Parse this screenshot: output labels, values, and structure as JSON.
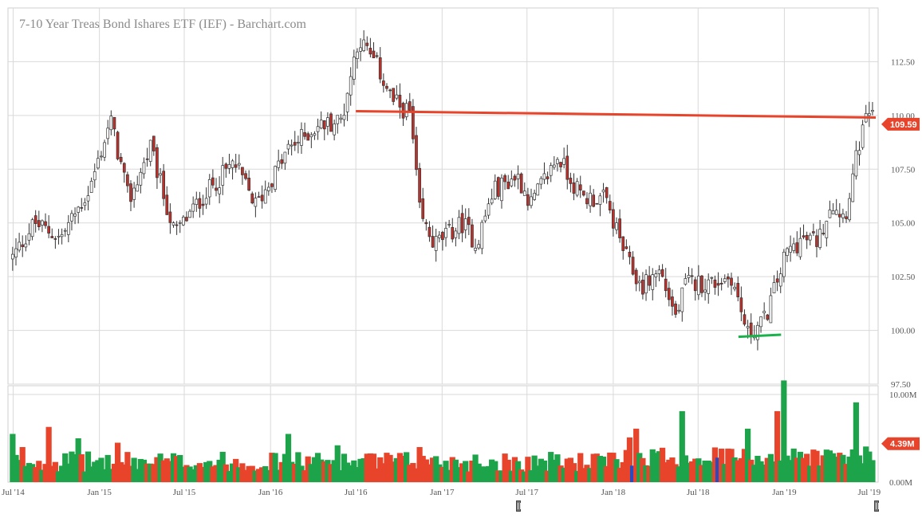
{
  "chart_data": {
    "type": "candlestick",
    "title": "7-10 Year Treas Bond Ishares ETF (IEF) - Barchart.com",
    "price_axis": {
      "ylim": [
        97.5,
        115.0
      ],
      "ticks": [
        97.5,
        100.0,
        102.5,
        105.0,
        107.5,
        110.0,
        112.5
      ],
      "tick_labels": [
        "97.50",
        "100.00",
        "102.50",
        "105.00",
        "107.50",
        "110.00",
        "112.50"
      ],
      "grid": true,
      "position": "right"
    },
    "volume_axis": {
      "ylim": [
        0,
        11
      ],
      "ticks": [
        0,
        10
      ],
      "tick_labels": [
        "0.00M",
        "10.00M"
      ]
    },
    "x_axis": {
      "tick_labels": [
        "Jul '14",
        "Jan '15",
        "Jul '15",
        "Jan '16",
        "Jul '16",
        "Jan '17",
        "Jul '17",
        "Jan '18",
        "Jul '18",
        "Jan '19",
        "Jul '19"
      ],
      "grid": true
    },
    "last_price": {
      "value": 109.59,
      "label": "109.59"
    },
    "last_volume": {
      "value": 4.39,
      "label": "4.39M"
    },
    "anchors": [
      [
        "2014-06-30",
        103.4
      ],
      [
        "2014-08-15",
        105.0
      ],
      [
        "2014-10-10",
        104.3
      ],
      [
        "2014-12-10",
        106.5
      ],
      [
        "2015-01-25",
        109.8
      ],
      [
        "2015-03-05",
        106.0
      ],
      [
        "2015-04-20",
        108.5
      ],
      [
        "2015-06-10",
        104.5
      ],
      [
        "2015-08-20",
        106.5
      ],
      [
        "2015-10-15",
        107.8
      ],
      [
        "2015-12-01",
        105.8
      ],
      [
        "2016-02-10",
        108.5
      ],
      [
        "2016-04-10",
        109.5
      ],
      [
        "2016-06-01",
        109.8
      ],
      [
        "2016-07-06",
        113.6
      ],
      [
        "2016-08-15",
        112.3
      ],
      [
        "2016-09-20",
        110.6
      ],
      [
        "2016-10-25",
        110.1
      ],
      [
        "2016-11-15",
        105.3
      ],
      [
        "2016-12-15",
        104.0
      ],
      [
        "2017-02-15",
        105.0
      ],
      [
        "2017-03-15",
        104.0
      ],
      [
        "2017-04-20",
        106.5
      ],
      [
        "2017-06-10",
        107.2
      ],
      [
        "2017-07-10",
        105.9
      ],
      [
        "2017-09-05",
        108.1
      ],
      [
        "2017-10-25",
        106.2
      ],
      [
        "2017-12-15",
        106.1
      ],
      [
        "2018-02-01",
        103.2
      ],
      [
        "2018-03-01",
        102.0
      ],
      [
        "2018-04-10",
        102.8
      ],
      [
        "2018-05-15",
        100.6
      ],
      [
        "2018-06-05",
        102.2
      ],
      [
        "2018-08-01",
        102.2
      ],
      [
        "2018-09-10",
        102.5
      ],
      [
        "2018-10-15",
        99.8
      ],
      [
        "2018-11-20",
        100.5
      ],
      [
        "2019-01-05",
        103.6
      ],
      [
        "2019-02-05",
        104.2
      ],
      [
        "2019-03-15",
        104.2
      ],
      [
        "2019-04-10",
        106.0
      ],
      [
        "2019-05-10",
        105.3
      ],
      [
        "2019-06-10",
        108.7
      ],
      [
        "2019-07-01",
        110.2
      ],
      [
        "2019-07-12",
        109.59
      ]
    ],
    "volume_spikes": [
      [
        "2014-06-30",
        5.5
      ],
      [
        "2014-07-20",
        4.0
      ],
      [
        "2014-09-15",
        6.3
      ],
      [
        "2014-11-20",
        5.0
      ],
      [
        "2015-02-10",
        4.5
      ],
      [
        "2016-02-10",
        5.5
      ],
      [
        "2016-05-20",
        4.2
      ],
      [
        "2016-11-15",
        4.0
      ],
      [
        "2018-02-05",
        4.5
      ],
      [
        "2018-02-20",
        5.5
      ],
      [
        "2018-05-25",
        7.5
      ],
      [
        "2018-10-12",
        5.5
      ],
      [
        "2018-12-20",
        7.5
      ],
      [
        "2019-01-03",
        11.0
      ],
      [
        "2019-06-01",
        8.5
      ]
    ],
    "annotations": [
      {
        "type": "resistance_line",
        "color": "#e8442b",
        "from": [
          "2016-07-01",
          110.2
        ],
        "to": [
          "2019-07-15",
          109.9
        ]
      },
      {
        "type": "support_line",
        "color": "#1bb24b",
        "from": [
          "2018-09-25",
          99.7
        ],
        "to": [
          "2018-12-25",
          99.8
        ]
      }
    ],
    "colors": {
      "up": "#1da44a",
      "down": "#e8442b",
      "candle_up": "#ffffff",
      "candle_down": "#c0302a",
      "grid": "#d9d9d9",
      "badge_price": "#e8442b",
      "badge_volume": "#e8442b",
      "volume_highlight": "#2a4bbf"
    }
  }
}
